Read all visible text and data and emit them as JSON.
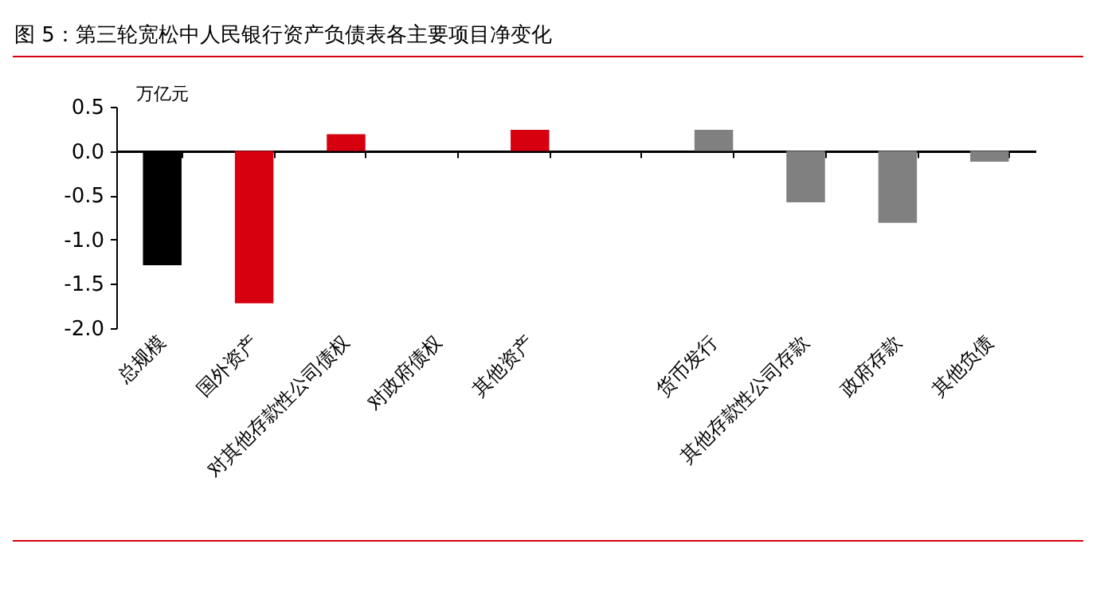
{
  "chart_data": {
    "type": "bar",
    "title": "图 5：第三轮宽松中人民银行资产负债表各主要项目净变化",
    "ylabel": "万亿元",
    "categories": [
      "总规模",
      "国外资产",
      "对其他存款性公司债权",
      "对政府债权",
      "其他资产",
      null,
      "货币发行",
      "其他存款性公司存款",
      "政府存款",
      "其他负债"
    ],
    "values": [
      -1.29,
      -1.72,
      0.19,
      0,
      0.24,
      null,
      0.24,
      -0.58,
      -0.81,
      -0.12
    ],
    "colors": [
      "#000000",
      "#d7000f",
      "#d7000f",
      "#d7000f",
      "#d7000f",
      "#808080",
      "#808080",
      "#808080",
      "#808080",
      "#808080"
    ],
    "ylim": [
      -2,
      0.5
    ],
    "yticks": [
      {
        "value": -2,
        "label": "-2.0"
      },
      {
        "value": -1.5,
        "label": "-1.5"
      },
      {
        "value": -1,
        "label": "-1.0"
      },
      {
        "value": -0.5,
        "label": "-0.5"
      },
      {
        "value": 0,
        "label": "0.0"
      },
      {
        "value": 0.5,
        "label": "0.5"
      }
    ]
  }
}
